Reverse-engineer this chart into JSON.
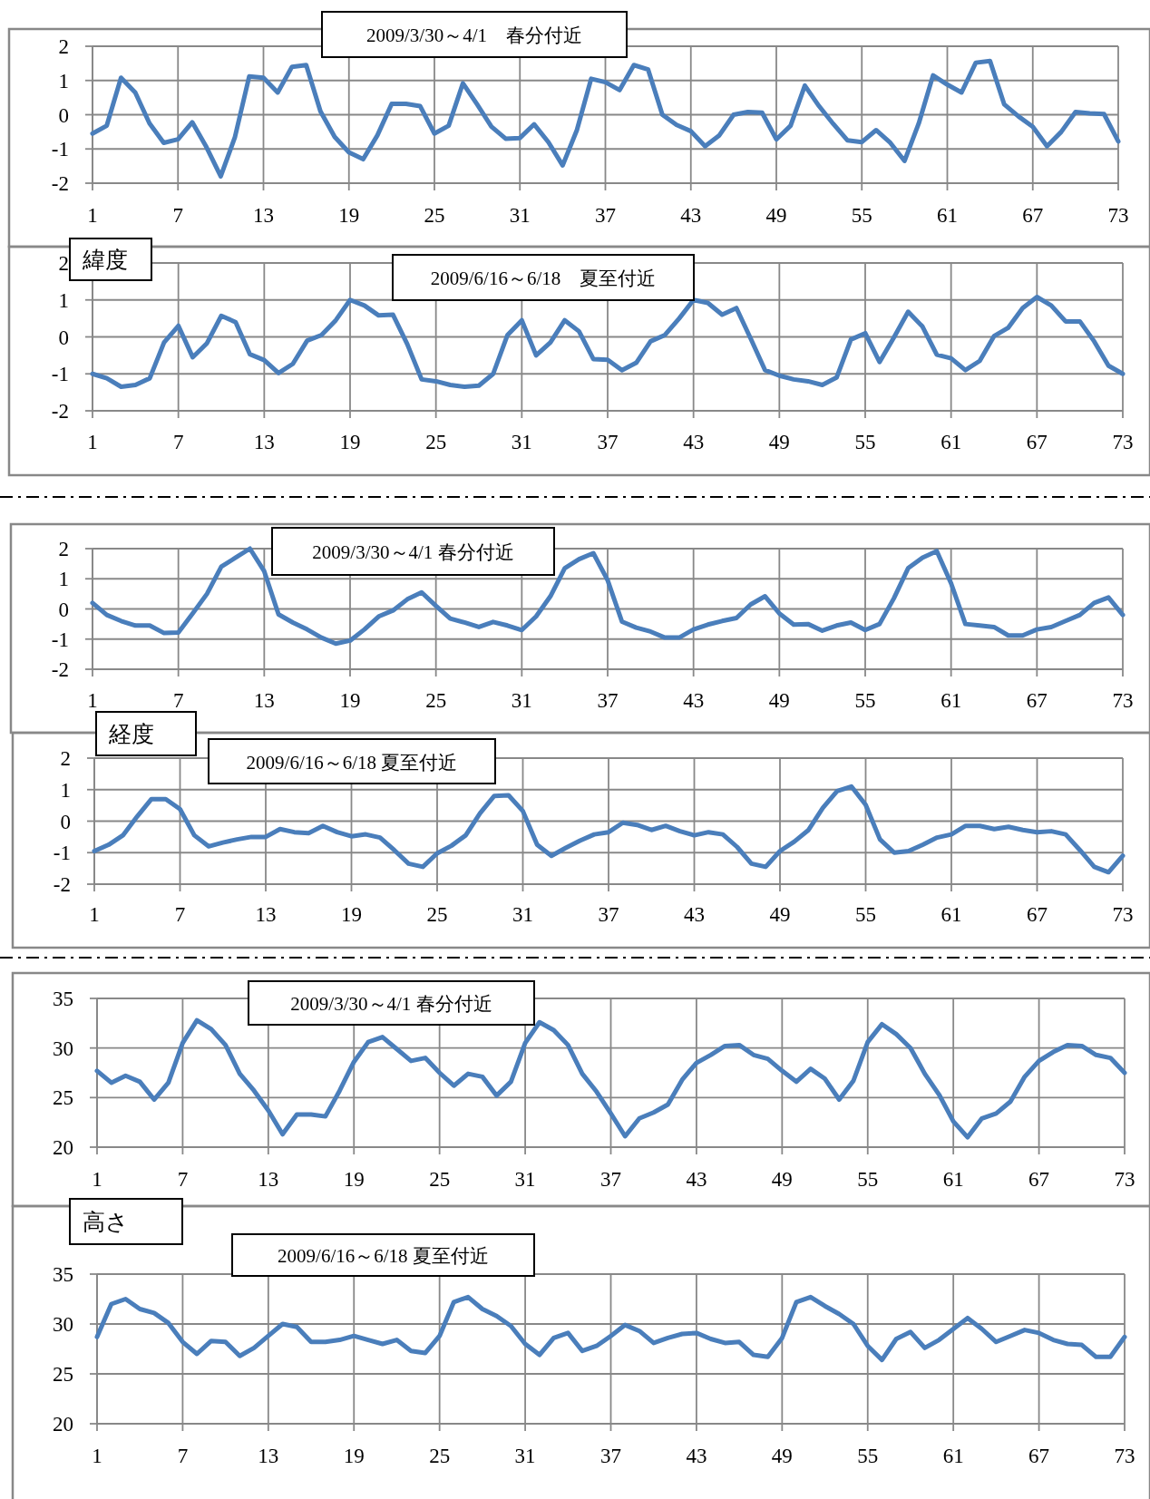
{
  "chart_data": [
    {
      "type": "line",
      "title": "2009/3/30～4/1　春分付近",
      "color": "#4a7ebb",
      "grid": true,
      "xlim": [
        1,
        73
      ],
      "xticks": [
        1,
        7,
        13,
        19,
        25,
        31,
        37,
        43,
        49,
        55,
        61,
        67,
        73
      ],
      "ylim": [
        -2,
        2
      ],
      "yticks": [
        -2,
        -1,
        0,
        1,
        2
      ],
      "x": [
        1,
        2,
        3,
        4,
        5,
        6,
        7,
        8,
        9,
        10,
        11,
        12,
        13,
        14,
        15,
        16,
        17,
        18,
        19,
        20,
        21,
        22,
        23,
        24,
        25,
        26,
        27,
        28,
        29,
        30,
        31,
        32,
        33,
        34,
        35,
        36,
        37,
        38,
        39,
        40,
        41,
        42,
        43,
        44,
        45,
        46,
        47,
        48,
        49,
        50,
        51,
        52,
        53,
        54,
        55,
        56,
        57,
        58,
        59,
        60,
        61,
        62,
        63,
        64,
        65,
        66,
        67,
        68,
        69,
        70,
        71,
        72,
        73
      ],
      "values": [
        -0.55,
        -0.32,
        1.08,
        0.65,
        -0.25,
        -0.82,
        -0.72,
        -0.22,
        -0.95,
        -1.8,
        -0.65,
        1.12,
        1.08,
        0.65,
        1.4,
        1.45,
        0.1,
        -0.65,
        -1.1,
        -1.3,
        -0.6,
        0.32,
        0.32,
        0.25,
        -0.55,
        -0.32,
        0.92,
        0.3,
        -0.35,
        -0.7,
        -0.68,
        -0.28,
        -0.8,
        -1.48,
        -0.45,
        1.05,
        0.95,
        0.72,
        1.45,
        1.32,
        0.0,
        -0.3,
        -0.48,
        -0.92,
        -0.6,
        0.0,
        0.08,
        0.06,
        -0.72,
        -0.32,
        0.85,
        0.25,
        -0.27,
        -0.75,
        -0.8,
        -0.45,
        -0.82,
        -1.35,
        -0.25,
        1.15,
        0.88,
        0.65,
        1.52,
        1.57,
        0.3,
        -0.05,
        -0.35,
        -0.92,
        -0.5,
        0.08,
        0.04,
        0.02,
        -0.78
      ]
    },
    {
      "type": "line",
      "title": "2009/6/16～6/18　夏至付近",
      "annotations": [
        "緯度"
      ],
      "color": "#4a7ebb",
      "grid": true,
      "xlim": [
        1,
        73
      ],
      "xticks": [
        1,
        7,
        13,
        19,
        25,
        31,
        37,
        43,
        49,
        55,
        61,
        67,
        73
      ],
      "ylim": [
        -2,
        2
      ],
      "yticks": [
        -2,
        -1,
        0,
        1,
        2
      ],
      "x": [
        1,
        2,
        3,
        4,
        5,
        6,
        7,
        8,
        9,
        10,
        11,
        12,
        13,
        14,
        15,
        16,
        17,
        18,
        19,
        20,
        21,
        22,
        23,
        24,
        25,
        26,
        27,
        28,
        29,
        30,
        31,
        32,
        33,
        34,
        35,
        36,
        37,
        38,
        39,
        40,
        41,
        42,
        43,
        44,
        45,
        46,
        47,
        48,
        49,
        50,
        51,
        52,
        53,
        54,
        55,
        56,
        57,
        58,
        59,
        60,
        61,
        62,
        63,
        64,
        65,
        66,
        67,
        68,
        69,
        70,
        71,
        72,
        73
      ],
      "values": [
        -1.0,
        -1.12,
        -1.35,
        -1.3,
        -1.12,
        -0.15,
        0.3,
        -0.55,
        -0.17,
        0.57,
        0.4,
        -0.47,
        -0.63,
        -0.98,
        -0.73,
        -0.1,
        0.05,
        0.45,
        1.0,
        0.85,
        0.58,
        0.6,
        -0.2,
        -1.15,
        -1.2,
        -1.3,
        -1.35,
        -1.32,
        -1.0,
        0.05,
        0.45,
        -0.5,
        -0.15,
        0.45,
        0.15,
        -0.6,
        -0.62,
        -0.9,
        -0.7,
        -0.12,
        0.05,
        0.5,
        1.0,
        0.92,
        0.6,
        0.78,
        -0.05,
        -0.9,
        -1.05,
        -1.15,
        -1.2,
        -1.3,
        -1.1,
        -0.07,
        0.1,
        -0.68,
        -0.02,
        0.68,
        0.28,
        -0.48,
        -0.58,
        -0.9,
        -0.65,
        0.02,
        0.25,
        0.78,
        1.08,
        0.85,
        0.42,
        0.42,
        -0.12,
        -0.78,
        -1.0
      ]
    },
    {
      "type": "line",
      "title": "2009/3/30～4/1 春分付近",
      "color": "#4a7ebb",
      "grid": true,
      "xlim": [
        1,
        73
      ],
      "xticks": [
        1,
        7,
        13,
        19,
        25,
        31,
        37,
        43,
        49,
        55,
        61,
        67,
        73
      ],
      "ylim": [
        -2,
        2
      ],
      "yticks": [
        -2,
        -1,
        0,
        1,
        2
      ],
      "x": [
        1,
        2,
        3,
        4,
        5,
        6,
        7,
        8,
        9,
        10,
        11,
        12,
        13,
        14,
        15,
        16,
        17,
        18,
        19,
        20,
        21,
        22,
        23,
        24,
        25,
        26,
        27,
        28,
        29,
        30,
        31,
        32,
        33,
        34,
        35,
        36,
        37,
        38,
        39,
        40,
        41,
        42,
        43,
        44,
        45,
        46,
        47,
        48,
        49,
        50,
        51,
        52,
        53,
        54,
        55,
        56,
        57,
        58,
        59,
        60,
        61,
        62,
        63,
        64,
        65,
        66,
        67,
        68,
        69,
        70,
        71,
        72,
        73
      ],
      "values": [
        0.2,
        -0.2,
        -0.4,
        -0.55,
        -0.55,
        -0.8,
        -0.78,
        -0.15,
        0.5,
        1.4,
        1.7,
        2.0,
        1.25,
        -0.18,
        -0.45,
        -0.68,
        -0.95,
        -1.15,
        -1.05,
        -0.68,
        -0.25,
        -0.05,
        0.32,
        0.55,
        0.1,
        -0.32,
        -0.45,
        -0.6,
        -0.43,
        -0.55,
        -0.7,
        -0.25,
        0.42,
        1.35,
        1.65,
        1.85,
        0.95,
        -0.42,
        -0.62,
        -0.75,
        -0.95,
        -0.95,
        -0.68,
        -0.52,
        -0.4,
        -0.3,
        0.15,
        0.42,
        -0.15,
        -0.52,
        -0.5,
        -0.72,
        -0.55,
        -0.45,
        -0.7,
        -0.5,
        0.35,
        1.35,
        1.7,
        1.92,
        0.85,
        -0.5,
        -0.55,
        -0.6,
        -0.88,
        -0.88,
        -0.68,
        -0.6,
        -0.4,
        -0.2,
        0.2,
        0.38,
        -0.2
      ]
    },
    {
      "type": "line",
      "title": "2009/6/16～6/18 夏至付近",
      "annotations": [
        "経度"
      ],
      "color": "#4a7ebb",
      "grid": true,
      "xlim": [
        1,
        73
      ],
      "xticks": [
        1,
        7,
        13,
        19,
        25,
        31,
        37,
        43,
        49,
        55,
        61,
        67,
        73
      ],
      "ylim": [
        -2,
        2
      ],
      "yticks": [
        -2,
        -1,
        0,
        1,
        2
      ],
      "x": [
        1,
        2,
        3,
        4,
        5,
        6,
        7,
        8,
        9,
        10,
        11,
        12,
        13,
        14,
        15,
        16,
        17,
        18,
        19,
        20,
        21,
        22,
        23,
        24,
        25,
        26,
        27,
        28,
        29,
        30,
        31,
        32,
        33,
        34,
        35,
        36,
        37,
        38,
        39,
        40,
        41,
        42,
        43,
        44,
        45,
        46,
        47,
        48,
        49,
        50,
        51,
        52,
        53,
        54,
        55,
        56,
        57,
        58,
        59,
        60,
        61,
        62,
        63,
        64,
        65,
        66,
        67,
        68,
        69,
        70,
        71,
        72,
        73
      ],
      "values": [
        -0.95,
        -0.75,
        -0.45,
        0.15,
        0.7,
        0.7,
        0.38,
        -0.45,
        -0.8,
        -0.68,
        -0.58,
        -0.5,
        -0.5,
        -0.25,
        -0.35,
        -0.38,
        -0.15,
        -0.35,
        -0.48,
        -0.42,
        -0.52,
        -0.92,
        -1.35,
        -1.45,
        -1.02,
        -0.78,
        -0.45,
        0.25,
        0.8,
        0.82,
        0.32,
        -0.75,
        -1.1,
        -0.85,
        -0.62,
        -0.42,
        -0.35,
        -0.05,
        -0.12,
        -0.28,
        -0.15,
        -0.32,
        -0.45,
        -0.35,
        -0.42,
        -0.82,
        -1.35,
        -1.45,
        -0.95,
        -0.65,
        -0.28,
        0.42,
        0.95,
        1.1,
        0.52,
        -0.58,
        -1.0,
        -0.95,
        -0.75,
        -0.52,
        -0.42,
        -0.15,
        -0.15,
        -0.25,
        -0.18,
        -0.28,
        -0.35,
        -0.32,
        -0.42,
        -0.92,
        -1.45,
        -1.62,
        -1.1
      ]
    },
    {
      "type": "line",
      "title": "2009/3/30～4/1 春分付近",
      "color": "#4a7ebb",
      "grid": true,
      "xlim": [
        1,
        73
      ],
      "xticks": [
        1,
        7,
        13,
        19,
        25,
        31,
        37,
        43,
        49,
        55,
        61,
        67,
        73
      ],
      "ylim": [
        20,
        35
      ],
      "yticks": [
        20,
        25,
        30,
        35
      ],
      "x": [
        1,
        2,
        3,
        4,
        5,
        6,
        7,
        8,
        9,
        10,
        11,
        12,
        13,
        14,
        15,
        16,
        17,
        18,
        19,
        20,
        21,
        22,
        23,
        24,
        25,
        26,
        27,
        28,
        29,
        30,
        31,
        32,
        33,
        34,
        35,
        36,
        37,
        38,
        39,
        40,
        41,
        42,
        43,
        44,
        45,
        46,
        47,
        48,
        49,
        50,
        51,
        52,
        53,
        54,
        55,
        56,
        57,
        58,
        59,
        60,
        61,
        62,
        63,
        64,
        65,
        66,
        67,
        68,
        69,
        70,
        71,
        72,
        73
      ],
      "values": [
        27.7,
        26.5,
        27.2,
        26.6,
        24.8,
        26.5,
        30.5,
        32.8,
        31.9,
        30.3,
        27.4,
        25.7,
        23.7,
        21.3,
        23.3,
        23.3,
        23.1,
        25.7,
        28.6,
        30.6,
        31.1,
        29.9,
        28.7,
        29.0,
        27.5,
        26.2,
        27.4,
        27.1,
        25.2,
        26.6,
        30.5,
        32.6,
        31.8,
        30.3,
        27.4,
        25.6,
        23.4,
        21.1,
        22.9,
        23.5,
        24.3,
        26.8,
        28.5,
        29.3,
        30.2,
        30.3,
        29.3,
        28.9,
        27.7,
        26.6,
        27.9,
        26.9,
        24.8,
        26.7,
        30.6,
        32.4,
        31.4,
        30.0,
        27.4,
        25.3,
        22.6,
        21.0,
        22.9,
        23.4,
        24.6,
        27.1,
        28.7,
        29.6,
        30.3,
        30.2,
        29.3,
        29.0,
        27.5
      ]
    },
    {
      "type": "line",
      "title": "2009/6/16～6/18 夏至付近",
      "annotations": [
        "高さ"
      ],
      "color": "#4a7ebb",
      "grid": true,
      "xlim": [
        1,
        73
      ],
      "xticks": [
        1,
        7,
        13,
        19,
        25,
        31,
        37,
        43,
        49,
        55,
        61,
        67,
        73
      ],
      "ylim": [
        20,
        35
      ],
      "yticks": [
        20,
        25,
        30,
        35
      ],
      "x": [
        1,
        2,
        3,
        4,
        5,
        6,
        7,
        8,
        9,
        10,
        11,
        12,
        13,
        14,
        15,
        16,
        17,
        18,
        19,
        20,
        21,
        22,
        23,
        24,
        25,
        26,
        27,
        28,
        29,
        30,
        31,
        32,
        33,
        34,
        35,
        36,
        37,
        38,
        39,
        40,
        41,
        42,
        43,
        44,
        45,
        46,
        47,
        48,
        49,
        50,
        51,
        52,
        53,
        54,
        55,
        56,
        57,
        58,
        59,
        60,
        61,
        62,
        63,
        64,
        65,
        66,
        67,
        68,
        69,
        70,
        71,
        72,
        73
      ],
      "values": [
        28.7,
        32.0,
        32.5,
        31.5,
        31.1,
        30.1,
        28.2,
        27.0,
        28.3,
        28.2,
        26.8,
        27.6,
        28.8,
        30.0,
        29.7,
        28.2,
        28.2,
        28.4,
        28.8,
        28.4,
        28.0,
        28.4,
        27.3,
        27.1,
        28.8,
        32.2,
        32.7,
        31.5,
        30.8,
        29.8,
        28.0,
        26.9,
        28.6,
        29.1,
        27.3,
        27.8,
        28.8,
        29.9,
        29.3,
        28.1,
        28.6,
        29.0,
        29.1,
        28.5,
        28.1,
        28.2,
        26.9,
        26.7,
        28.6,
        32.2,
        32.7,
        31.8,
        31.0,
        30.0,
        27.8,
        26.4,
        28.5,
        29.2,
        27.6,
        28.4,
        29.5,
        30.6,
        29.5,
        28.2,
        28.8,
        29.4,
        29.1,
        28.4,
        28.0,
        27.9,
        26.7,
        26.7,
        28.7
      ]
    }
  ]
}
